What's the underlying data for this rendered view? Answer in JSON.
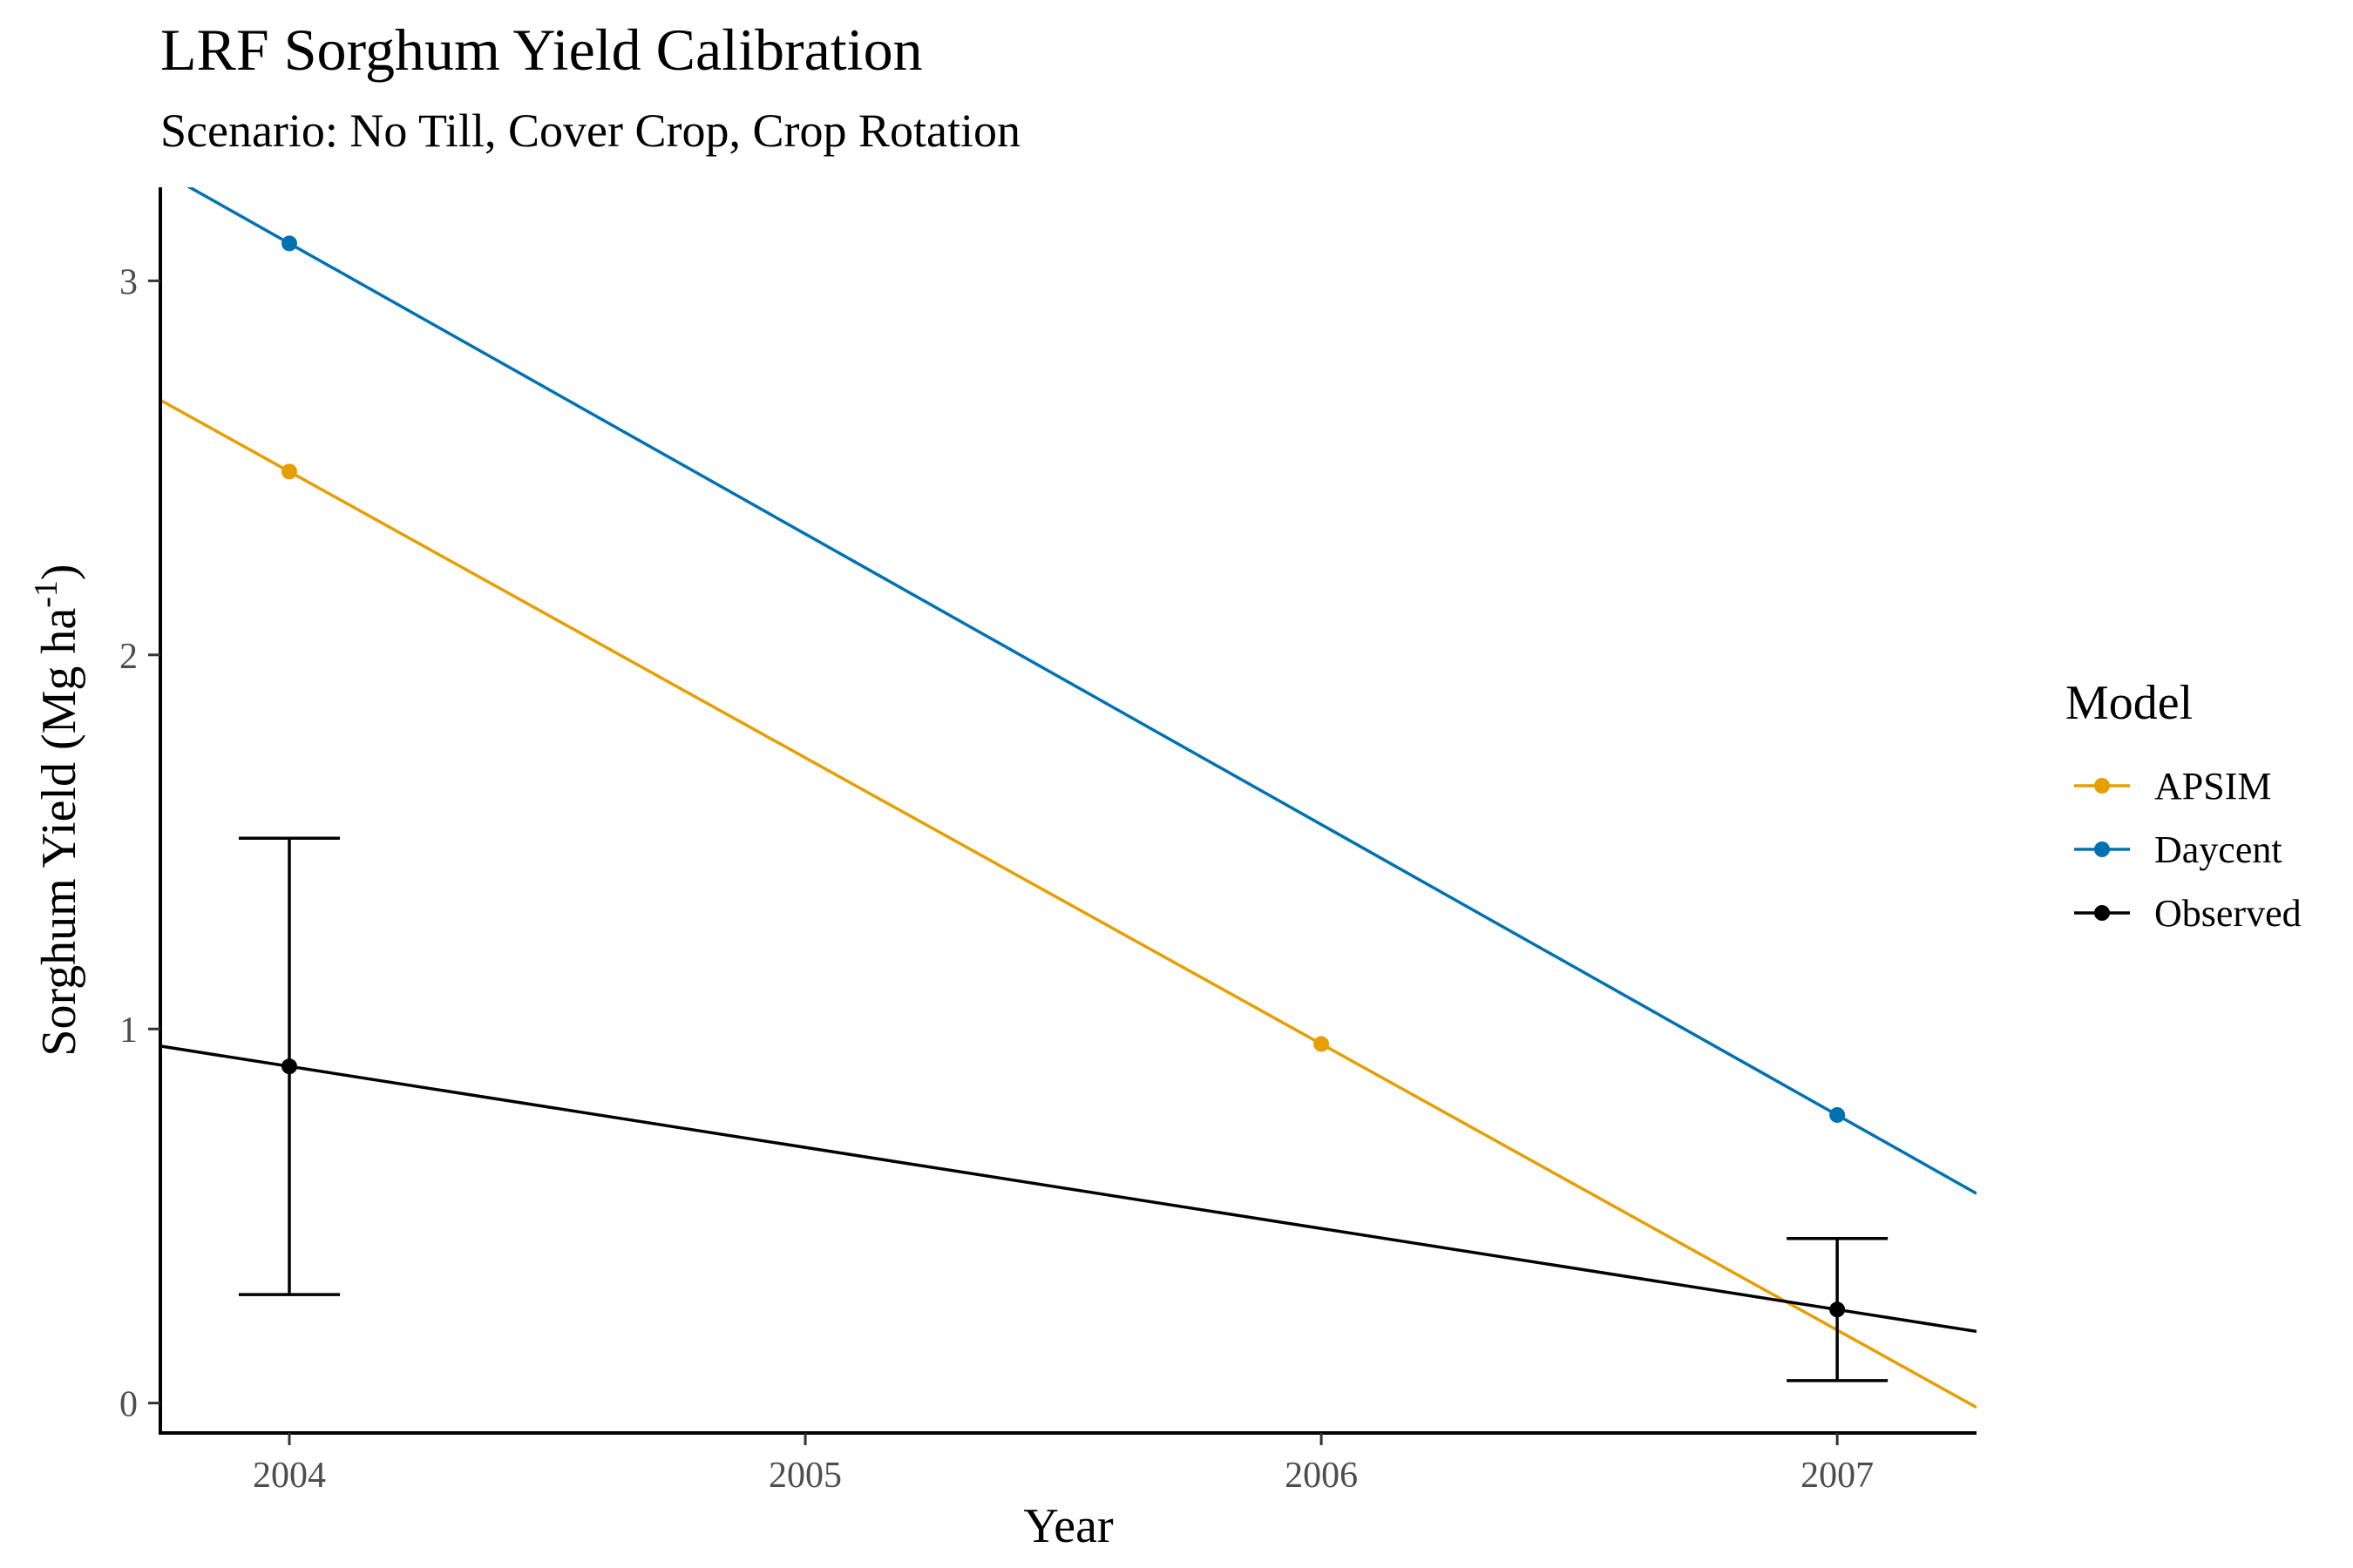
{
  "chart_data": {
    "type": "line",
    "title": "LRF Sorghum Yield Calibration",
    "subtitle": "Scenario: No Till, Cover Crop, Crop Rotation",
    "xlabel": "Year",
    "ylabel": "Sorghum Yield (Mg ha",
    "ylabel_superscript": "-1",
    "ylabel_suffix": ")",
    "xlim": [
      2003.75,
      2007.27
    ],
    "ylim": [
      -0.08,
      3.25
    ],
    "x_ticks": [
      2004,
      2005,
      2006,
      2007
    ],
    "y_ticks": [
      0,
      1,
      2,
      3
    ],
    "grid": false,
    "legend": {
      "title": "Model",
      "placement": "right"
    },
    "series": [
      {
        "name": "APSIM",
        "color": "#E69F00",
        "points": [
          {
            "x": 2004,
            "y": 2.49
          },
          {
            "x": 2006,
            "y": 0.96
          }
        ],
        "trend": {
          "slope": -0.765,
          "intercept_at_2004": 2.49
        }
      },
      {
        "name": "Daycent",
        "color": "#0072B2",
        "points": [
          {
            "x": 2004,
            "y": 3.1
          },
          {
            "x": 2007,
            "y": 0.77
          }
        ],
        "trend": {
          "slope": -0.7767,
          "intercept_at_2004": 3.1
        }
      },
      {
        "name": "Observed",
        "color": "#000000",
        "points": [
          {
            "x": 2004,
            "y": 0.9,
            "ymin": 0.29,
            "ymax": 1.51
          },
          {
            "x": 2007,
            "y": 0.25,
            "ymin": 0.06,
            "ymax": 0.44
          }
        ],
        "trend": {
          "slope": -0.2167,
          "intercept_at_2004": 0.9
        }
      }
    ]
  }
}
